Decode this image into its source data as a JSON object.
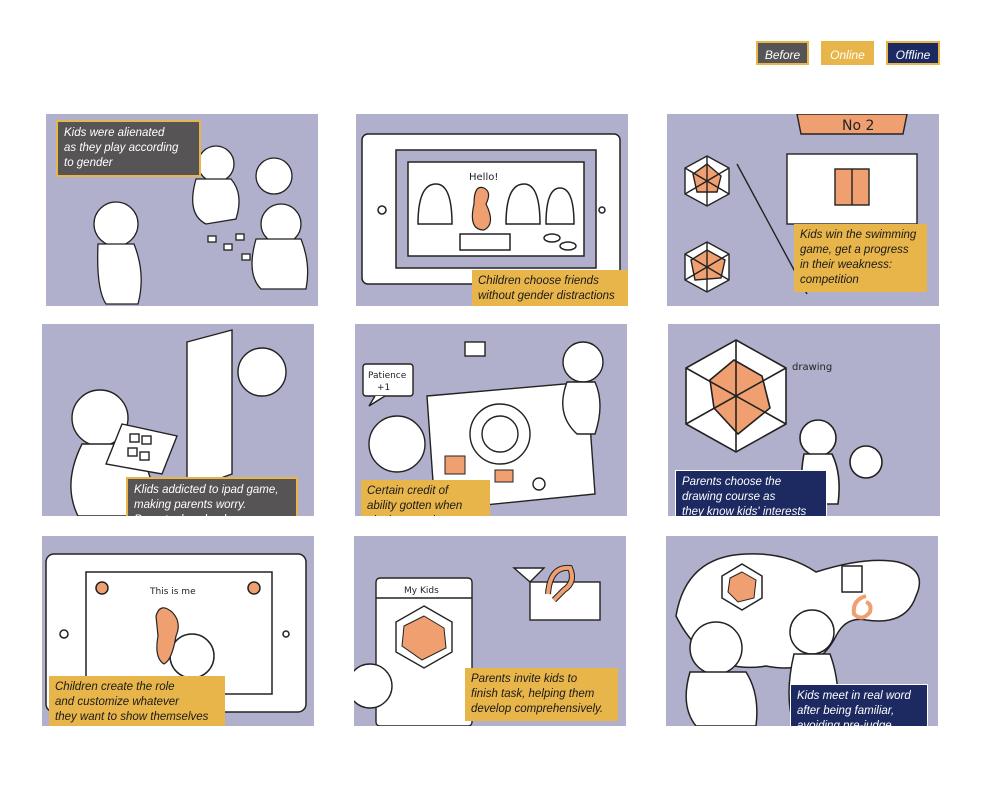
{
  "legend": {
    "before": "Before",
    "online": "Online",
    "offline": "Offline"
  },
  "colors": {
    "panel_bg": "#b1b0cc",
    "before": "#565455",
    "online": "#e8b54a",
    "offline": "#1c2a61",
    "accent_orange": "#f0a070"
  },
  "panels": [
    {
      "caption": "Kids were alienated\nas they play according\nto gender",
      "type": "before"
    },
    {
      "caption": "Children choose friends\n without gender distractions",
      "type": "online",
      "sketch_text": "Hello!"
    },
    {
      "caption": "Kids win the swimming\ngame, get a progress\nin their weakness:\ncompetition",
      "type": "online",
      "sketch_text": "No 2"
    },
    {
      "caption": "Klids addicted to ipad game,\nmaking parents worry.\nParents download\nYOOTOPIA for kids.",
      "type": "before"
    },
    {
      "caption": "Certain credit of\nability gotten when\n playing certain game,\nwhich drives kids",
      "type": "online",
      "sketch_text": "Patience\n+1"
    },
    {
      "caption": "Parents choose the\ndrawing course as\nthey know kids' interests\nin it through this app",
      "type": "offline",
      "sketch_text": "drawing"
    },
    {
      "caption": "Children create the role\n and customize whatever\nthey want to show themselves",
      "type": "online",
      "sketch_text": "This is me"
    },
    {
      "caption": "Parents invite kids to\nfinish task, helping them\ndevelop comprehensively.",
      "type": "online",
      "sketch_text": "My Kids"
    },
    {
      "caption": "Kids meet in real word\nafter being familiar,\navoiding pre-judge",
      "type": "offline"
    }
  ]
}
